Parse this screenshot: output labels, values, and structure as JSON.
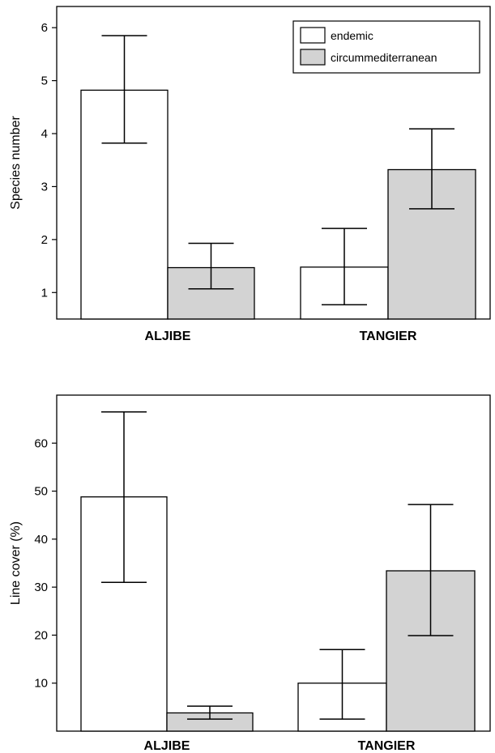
{
  "chart_data": [
    {
      "type": "bar",
      "ylabel": "Species number",
      "ylim": [
        0.5,
        6.4
      ],
      "yticks": [
        1,
        2,
        3,
        4,
        5,
        6
      ],
      "categories": [
        "ALJIBE",
        "TANGIER"
      ],
      "legend": "top-right",
      "series": [
        {
          "name": "endemic",
          "color": "#ffffff",
          "values": [
            4.82,
            1.48
          ],
          "err_low": [
            3.82,
            0.77
          ],
          "err_high": [
            5.85,
            2.21
          ]
        },
        {
          "name": "circummediterranean",
          "color": "#d3d3d3",
          "values": [
            1.47,
            3.32
          ],
          "err_low": [
            1.07,
            2.58
          ],
          "err_high": [
            1.93,
            4.09
          ]
        }
      ]
    },
    {
      "type": "bar",
      "ylabel": "Line cover (%)",
      "ylim": [
        0,
        70
      ],
      "yticks": [
        10,
        20,
        30,
        40,
        50,
        60
      ],
      "categories": [
        "ALJIBE",
        "TANGIER"
      ],
      "series": [
        {
          "name": "endemic",
          "color": "#ffffff",
          "values": [
            48.8,
            10.0
          ],
          "err_low": [
            31.0,
            2.5
          ],
          "err_high": [
            66.5,
            17.0
          ]
        },
        {
          "name": "circummediterranean",
          "color": "#d3d3d3",
          "values": [
            3.8,
            33.4
          ],
          "err_low": [
            2.5,
            19.9
          ],
          "err_high": [
            5.2,
            47.2
          ]
        }
      ]
    }
  ]
}
